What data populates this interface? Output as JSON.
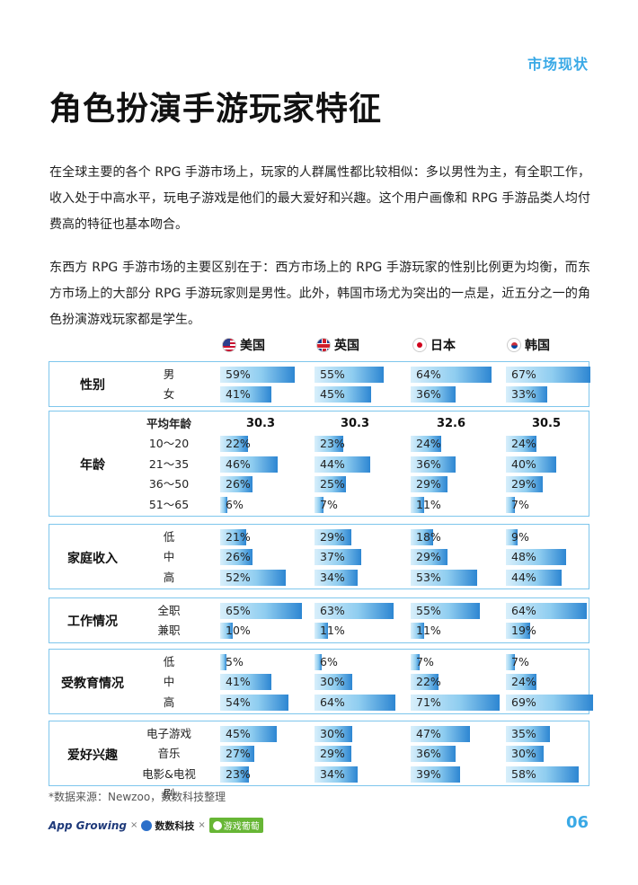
{
  "header": {
    "section": "市场现状",
    "title": "角色扮演手游玩家特征"
  },
  "paragraphs": [
    "在全球主要的各个 RPG 手游市场上，玩家的人群属性都比较相似：多以男性为主，有全职工作，收入处于中高水平，玩电子游戏是他们的最大爱好和兴趣。这个用户画像和 RPG 手游品类人均付费高的特征也基本吻合。",
    "东西方 RPG 手游市场的主要区别在于：西方市场上的 RPG 手游玩家的性别比例更为均衡，而东方市场上的大部分 RPG 手游玩家则是男性。此外，韩国市场尤为突出的一点是，近五分之一的角色扮演游戏玩家都是学生。"
  ],
  "countries": [
    {
      "name": "美国",
      "icon": "us-flag-icon"
    },
    {
      "name": "英国",
      "icon": "uk-flag-icon"
    },
    {
      "name": "日本",
      "icon": "japan-flag-icon"
    },
    {
      "name": "韩国",
      "icon": "korea-flag-icon"
    }
  ],
  "groups": [
    {
      "label": "性别",
      "rows": [
        {
          "label": "男",
          "values": [
            59,
            55,
            64,
            67
          ],
          "text": [
            "59%",
            "55%",
            "64%",
            "67%"
          ]
        },
        {
          "label": "女",
          "values": [
            41,
            45,
            36,
            33
          ],
          "text": [
            "41%",
            "45%",
            "36%",
            "33%"
          ]
        }
      ]
    },
    {
      "label": "年龄",
      "average": {
        "label": "平均年龄",
        "values": [
          "30.3",
          "30.3",
          "32.6",
          "30.5"
        ]
      },
      "rows": [
        {
          "label": "10～20",
          "values": [
            22,
            23,
            24,
            24
          ],
          "text": [
            "22%",
            "23%",
            "24%",
            "24%"
          ]
        },
        {
          "label": "21～35",
          "values": [
            46,
            44,
            36,
            40
          ],
          "text": [
            "46%",
            "44%",
            "36%",
            "40%"
          ]
        },
        {
          "label": "36～50",
          "values": [
            26,
            25,
            29,
            29
          ],
          "text": [
            "26%",
            "25%",
            "29%",
            "29%"
          ]
        },
        {
          "label": "51～65",
          "values": [
            6,
            7,
            11,
            7
          ],
          "text": [
            "6%",
            "7%",
            "11%",
            "7%"
          ]
        }
      ]
    },
    {
      "label": "家庭收入",
      "rows": [
        {
          "label": "低",
          "values": [
            21,
            29,
            18,
            9
          ],
          "text": [
            "21%",
            "29%",
            "18%",
            "9%"
          ]
        },
        {
          "label": "中",
          "values": [
            26,
            37,
            29,
            48
          ],
          "text": [
            "26%",
            "37%",
            "29%",
            "48%"
          ]
        },
        {
          "label": "高",
          "values": [
            52,
            34,
            53,
            44
          ],
          "text": [
            "52%",
            "34%",
            "53%",
            "44%"
          ]
        }
      ]
    },
    {
      "label": "工作情况",
      "rows": [
        {
          "label": "全职",
          "values": [
            65,
            63,
            55,
            64
          ],
          "text": [
            "65%",
            "63%",
            "55%",
            "64%"
          ]
        },
        {
          "label": "兼职",
          "values": [
            10,
            11,
            11,
            19
          ],
          "text": [
            "10%",
            "11%",
            "11%",
            "19%"
          ]
        }
      ]
    },
    {
      "label": "受教育情况",
      "rows": [
        {
          "label": "低",
          "values": [
            5,
            6,
            7,
            7
          ],
          "text": [
            "5%",
            "6%",
            "7%",
            "7%"
          ]
        },
        {
          "label": "中",
          "values": [
            41,
            30,
            22,
            24
          ],
          "text": [
            "41%",
            "30%",
            "22%",
            "24%"
          ]
        },
        {
          "label": "高",
          "values": [
            54,
            64,
            71,
            69
          ],
          "text": [
            "54%",
            "64%",
            "71%",
            "69%"
          ]
        }
      ]
    },
    {
      "label": "爱好兴趣",
      "rows": [
        {
          "label": "电子游戏",
          "values": [
            45,
            30,
            47,
            35
          ],
          "text": [
            "45%",
            "30%",
            "47%",
            "35%"
          ]
        },
        {
          "label": "音乐",
          "values": [
            27,
            29,
            36,
            30
          ],
          "text": [
            "27%",
            "29%",
            "36%",
            "30%"
          ]
        },
        {
          "label": "电影&电视剧",
          "values": [
            23,
            34,
            39,
            58
          ],
          "text": [
            "23%",
            "34%",
            "39%",
            "58%"
          ]
        }
      ]
    }
  ],
  "source": "*数据来源：Newzoo，数数科技整理",
  "footer": {
    "logo1": "App Growing",
    "sep": "×",
    "logo2": "数数科技",
    "logo3": "游戏葡萄",
    "page": "06"
  },
  "colors": {
    "accent": "#3aa9e6",
    "border": "#7ec6ec",
    "bar_dark": "#2d86d2",
    "bar_light": "#d8effb"
  }
}
